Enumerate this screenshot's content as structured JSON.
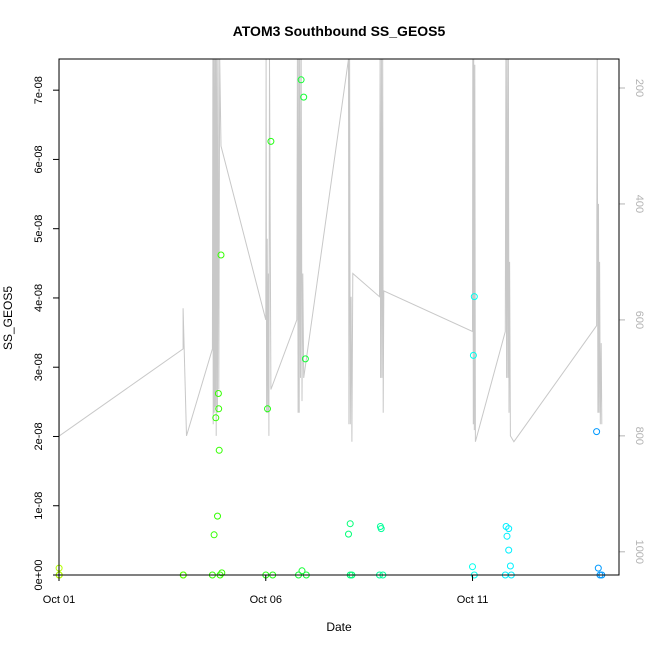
{
  "chart_data": {
    "type": "scatter",
    "title": "ATOM3 Southbound SS_GEOS5",
    "xlabel": "Date",
    "ylabel": "SS_GEOS5",
    "xlim": [
      "2016-10-01T00:00",
      "2016-10-14T13:00"
    ],
    "ylim": [
      0,
      7.45e-08
    ],
    "x_ticks": [
      {
        "date": "2016-10-01",
        "label": "Oct 01"
      },
      {
        "date": "2016-10-06",
        "label": "Oct 06"
      },
      {
        "date": "2016-10-11",
        "label": "Oct 11"
      }
    ],
    "y_ticks": [
      {
        "value": 0,
        "label": "0e+00"
      },
      {
        "value": 1e-08,
        "label": "1e-08"
      },
      {
        "value": 2e-08,
        "label": "2e-08"
      },
      {
        "value": 3e-08,
        "label": "3e-08"
      },
      {
        "value": 4e-08,
        "label": "4e-08"
      },
      {
        "value": 5e-08,
        "label": "5e-08"
      },
      {
        "value": 6e-08,
        "label": "6e-08"
      },
      {
        "value": 7e-08,
        "label": "7e-08"
      }
    ],
    "right_axis": {
      "color": "#b3b3b3",
      "reversed": true,
      "range": [
        150,
        1040
      ],
      "ticks": [
        {
          "value": 200,
          "label": "200"
        },
        {
          "value": 400,
          "label": "400"
        },
        {
          "value": 600,
          "label": "600"
        },
        {
          "value": 800,
          "label": "800"
        },
        {
          "value": 1000,
          "label": "1000"
        }
      ]
    },
    "points": [
      {
        "x": "2016-10-01T00:05",
        "y": 1e-09,
        "color": "#b3ff00"
      },
      {
        "x": "2016-10-01T00:05",
        "y": 0,
        "color": "#b3ff00"
      },
      {
        "x": "2016-10-01T00:10",
        "y": 0,
        "color": "#b3ff00"
      },
      {
        "x": "2016-10-04T00:05",
        "y": 0,
        "color": "#55ff00"
      },
      {
        "x": "2016-10-04T00:10",
        "y": 0,
        "color": "#55ff00"
      },
      {
        "x": "2016-10-04T17:00",
        "y": 0,
        "color": "#33ff00"
      },
      {
        "x": "2016-10-04T18:00",
        "y": 5.8e-09,
        "color": "#33ff00"
      },
      {
        "x": "2016-10-04T19:00",
        "y": 2.27e-08,
        "color": "#33ff00"
      },
      {
        "x": "2016-10-04T20:00",
        "y": 8.5e-09,
        "color": "#33ff00"
      },
      {
        "x": "2016-10-04T20:30",
        "y": 2.62e-08,
        "color": "#33ff00"
      },
      {
        "x": "2016-10-04T20:40",
        "y": 2.4e-08,
        "color": "#33ff00"
      },
      {
        "x": "2016-10-04T21:00",
        "y": 1.8e-08,
        "color": "#33ff00"
      },
      {
        "x": "2016-10-04T22:00",
        "y": 4.62e-08,
        "color": "#33ff00"
      },
      {
        "x": "2016-10-04T21:30",
        "y": 0,
        "color": "#33ff00"
      },
      {
        "x": "2016-10-04T22:30",
        "y": 3e-10,
        "color": "#33ff00"
      },
      {
        "x": "2016-10-06T00:00",
        "y": 0,
        "color": "#22ff11"
      },
      {
        "x": "2016-10-06T01:00",
        "y": 2.4e-08,
        "color": "#22ff11"
      },
      {
        "x": "2016-10-06T03:00",
        "y": 6.26e-08,
        "color": "#22ff11"
      },
      {
        "x": "2016-10-06T04:00",
        "y": 0,
        "color": "#22ff11"
      },
      {
        "x": "2016-10-06T19:00",
        "y": 0,
        "color": "#11ff33"
      },
      {
        "x": "2016-10-06T20:30",
        "y": 7.15e-08,
        "color": "#11ff33"
      },
      {
        "x": "2016-10-06T21:00",
        "y": 6e-10,
        "color": "#11ff33"
      },
      {
        "x": "2016-10-06T22:00",
        "y": 6.9e-08,
        "color": "#11ff33"
      },
      {
        "x": "2016-10-06T23:00",
        "y": 3.12e-08,
        "color": "#11ff33"
      },
      {
        "x": "2016-10-06T23:30",
        "y": 0,
        "color": "#11ff33"
      },
      {
        "x": "2016-10-08T00:00",
        "y": 5.9e-09,
        "color": "#00ff77"
      },
      {
        "x": "2016-10-08T01:00",
        "y": 7.4e-09,
        "color": "#00ff77"
      },
      {
        "x": "2016-10-08T01:00",
        "y": 0,
        "color": "#00ff77"
      },
      {
        "x": "2016-10-08T02:00",
        "y": 0,
        "color": "#00ff77"
      },
      {
        "x": "2016-10-08T18:00",
        "y": 0,
        "color": "#00ff99"
      },
      {
        "x": "2016-10-08T18:30",
        "y": 7e-09,
        "color": "#00ff99"
      },
      {
        "x": "2016-10-08T19:00",
        "y": 6.7e-09,
        "color": "#00ff99"
      },
      {
        "x": "2016-10-08T20:00",
        "y": 0,
        "color": "#00ff99"
      },
      {
        "x": "2016-10-11T00:00",
        "y": 1.2e-09,
        "color": "#00ffee"
      },
      {
        "x": "2016-10-11T00:30",
        "y": 3.17e-08,
        "color": "#00ffee"
      },
      {
        "x": "2016-10-11T01:00",
        "y": 4.02e-08,
        "color": "#00ffee"
      },
      {
        "x": "2016-10-11T01:00",
        "y": 0,
        "color": "#00ffee"
      },
      {
        "x": "2016-10-11T19:00",
        "y": 0,
        "color": "#00f0ff"
      },
      {
        "x": "2016-10-11T19:30",
        "y": 7e-09,
        "color": "#00f0ff"
      },
      {
        "x": "2016-10-11T20:00",
        "y": 5.6e-09,
        "color": "#00f0ff"
      },
      {
        "x": "2016-10-11T21:00",
        "y": 6.7e-09,
        "color": "#00f0ff"
      },
      {
        "x": "2016-10-11T21:00",
        "y": 3.6e-09,
        "color": "#00f0ff"
      },
      {
        "x": "2016-10-11T22:00",
        "y": 1.3e-09,
        "color": "#00f0ff"
      },
      {
        "x": "2016-10-11T22:30",
        "y": 0,
        "color": "#00f0ff"
      },
      {
        "x": "2016-10-14T00:00",
        "y": 2.07e-08,
        "color": "#0099ff"
      },
      {
        "x": "2016-10-14T01:00",
        "y": 1e-09,
        "color": "#0099ff"
      },
      {
        "x": "2016-10-14T02:00",
        "y": 0,
        "color": "#0099ff"
      },
      {
        "x": "2016-10-14T03:00",
        "y": 0,
        "color": "#0099ff"
      }
    ],
    "pressure_line": {
      "color": "#c8c8c8",
      "values": [
        [
          "2016-10-01T00:00",
          150
        ],
        [
          "2016-10-01T00:05",
          150
        ],
        [
          "2016-10-01T00:12",
          800
        ],
        [
          "2016-10-04T00:00",
          650
        ],
        [
          "2016-10-04T00:00",
          580
        ],
        [
          "2016-10-04T02:00",
          800
        ],
        [
          "2016-10-04T17:00",
          650
        ],
        [
          "2016-10-04T17:20",
          150
        ],
        [
          "2016-10-04T17:30",
          780
        ],
        [
          "2016-10-04T17:45",
          150
        ],
        [
          "2016-10-04T18:05",
          760
        ],
        [
          "2016-10-04T18:20",
          150
        ],
        [
          "2016-10-04T18:35",
          750
        ],
        [
          "2016-10-04T18:55",
          150
        ],
        [
          "2016-10-04T19:15",
          800
        ],
        [
          "2016-10-04T19:35",
          150
        ],
        [
          "2016-10-04T19:55",
          760
        ],
        [
          "2016-10-04T20:20",
          150
        ],
        [
          "2016-10-04T20:45",
          720
        ],
        [
          "2016-10-04T21:15",
          150
        ],
        [
          "2016-10-04T22:00",
          300
        ],
        [
          "2016-10-06T00:00",
          600
        ],
        [
          "2016-10-06T00:10",
          150
        ],
        [
          "2016-10-06T00:30",
          760
        ],
        [
          "2016-10-06T00:50",
          460
        ],
        [
          "2016-10-06T01:10",
          760
        ],
        [
          "2016-10-06T01:30",
          520
        ],
        [
          "2016-10-06T01:50",
          800
        ],
        [
          "2016-10-06T02:10",
          150
        ],
        [
          "2016-10-06T03:00",
          720
        ],
        [
          "2016-10-06T18:00",
          600
        ],
        [
          "2016-10-06T18:20",
          150
        ],
        [
          "2016-10-06T18:45",
          760
        ],
        [
          "2016-10-06T19:05",
          150
        ],
        [
          "2016-10-06T19:25",
          760
        ],
        [
          "2016-10-06T19:45",
          150
        ],
        [
          "2016-10-06T20:10",
          700
        ],
        [
          "2016-10-06T20:35",
          150
        ],
        [
          "2016-10-06T21:00",
          740
        ],
        [
          "2016-10-06T21:30",
          520
        ],
        [
          "2016-10-06T22:00",
          700
        ],
        [
          "2016-10-08T00:00",
          150
        ],
        [
          "2016-10-08T00:15",
          780
        ],
        [
          "2016-10-08T00:40",
          150
        ],
        [
          "2016-10-08T01:05",
          780
        ],
        [
          "2016-10-08T01:30",
          560
        ],
        [
          "2016-10-08T02:00",
          810
        ],
        [
          "2016-10-08T02:30",
          520
        ],
        [
          "2016-10-08T18:00",
          560
        ],
        [
          "2016-10-08T18:20",
          150
        ],
        [
          "2016-10-08T18:40",
          700
        ],
        [
          "2016-10-08T19:05",
          150
        ],
        [
          "2016-10-08T19:25",
          700
        ],
        [
          "2016-10-08T19:50",
          150
        ],
        [
          "2016-10-08T20:10",
          760
        ],
        [
          "2016-10-08T20:30",
          550
        ],
        [
          "2016-10-11T00:00",
          620
        ],
        [
          "2016-10-11T00:10",
          150
        ],
        [
          "2016-10-11T00:25",
          780
        ],
        [
          "2016-10-11T00:40",
          150
        ],
        [
          "2016-10-11T01:00",
          790
        ],
        [
          "2016-10-11T01:20",
          160
        ],
        [
          "2016-10-11T01:40",
          810
        ],
        [
          "2016-10-11T19:00",
          620
        ],
        [
          "2016-10-11T19:20",
          150
        ],
        [
          "2016-10-11T19:45",
          700
        ],
        [
          "2016-10-11T20:05",
          150
        ],
        [
          "2016-10-11T20:30",
          700
        ],
        [
          "2016-10-11T20:50",
          150
        ],
        [
          "2016-10-11T21:10",
          760
        ],
        [
          "2016-10-11T21:30",
          500
        ],
        [
          "2016-10-11T22:00",
          800
        ],
        [
          "2016-10-12T00:00",
          810
        ],
        [
          "2016-10-14T00:00",
          610
        ],
        [
          "2016-10-14T00:20",
          150
        ],
        [
          "2016-10-14T00:45",
          760
        ],
        [
          "2016-10-14T01:05",
          400
        ],
        [
          "2016-10-14T01:25",
          760
        ],
        [
          "2016-10-14T01:45",
          500
        ],
        [
          "2016-10-14T02:10",
          780
        ],
        [
          "2016-10-14T02:40",
          640
        ],
        [
          "2016-10-14T03:00",
          780
        ]
      ]
    }
  }
}
